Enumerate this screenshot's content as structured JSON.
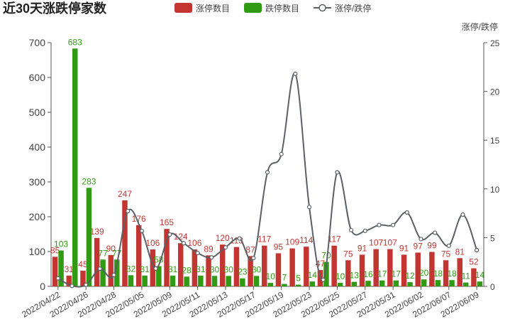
{
  "chart_data": {
    "type": "bar_line",
    "title": "近30天涨跌停家数",
    "y2_axis_label": "涨停/跌停",
    "categories": [
      "2022/04/22",
      null,
      "2022/04/26",
      null,
      "2022/04/28",
      null,
      "2022/05/05",
      null,
      "2022/05/09",
      null,
      "2022/05/11",
      null,
      "2022/05/13",
      null,
      "2022/05/17",
      null,
      "2022/05/19",
      null,
      "2022/05/23",
      null,
      "2022/05/25",
      null,
      "2022/05/27",
      null,
      "2022/05/31",
      null,
      "2022/06/02",
      null,
      "2022/06/07",
      null,
      "2022/06/09"
    ],
    "series": [
      {
        "name": "涨停数目",
        "color": "#c23531",
        "type": "bar",
        "values": [
          85,
          31,
          45,
          139,
          90,
          247,
          176,
          106,
          165,
          124,
          106,
          89,
          120,
          113,
          87,
          117,
          95,
          109,
          114,
          47,
          117,
          75,
          91,
          107,
          107,
          91,
          97,
          99,
          75,
          81,
          52
        ]
      },
      {
        "name": "跌停数目",
        "color": "#2f9a12",
        "type": "bar",
        "values": [
          103,
          683,
          283,
          77,
          77,
          32,
          31,
          58,
          31,
          28,
          31,
          30,
          30,
          23,
          30,
          10,
          7,
          5,
          14,
          70,
          10,
          13,
          16,
          17,
          17,
          12,
          20,
          18,
          18,
          11,
          14
        ]
      },
      {
        "name": "涨停/跌停",
        "color": "#5a6066",
        "type": "line",
        "axis": "y2",
        "values": [
          0.83,
          0.05,
          0.16,
          1.81,
          1.17,
          7.72,
          5.68,
          1.83,
          5.32,
          4.43,
          3.42,
          2.97,
          4.0,
          4.91,
          2.9,
          11.7,
          13.57,
          21.8,
          8.14,
          0.67,
          11.7,
          5.77,
          5.69,
          6.29,
          6.29,
          7.58,
          4.85,
          5.5,
          4.17,
          7.36,
          3.71
        ]
      }
    ],
    "ylim": [
      0,
      700
    ],
    "yticks": [
      0,
      100,
      200,
      300,
      400,
      500,
      600,
      700
    ],
    "y2lim": [
      0,
      25
    ],
    "y2ticks": [
      0,
      5,
      10,
      15,
      20,
      25
    ],
    "grid": false
  }
}
